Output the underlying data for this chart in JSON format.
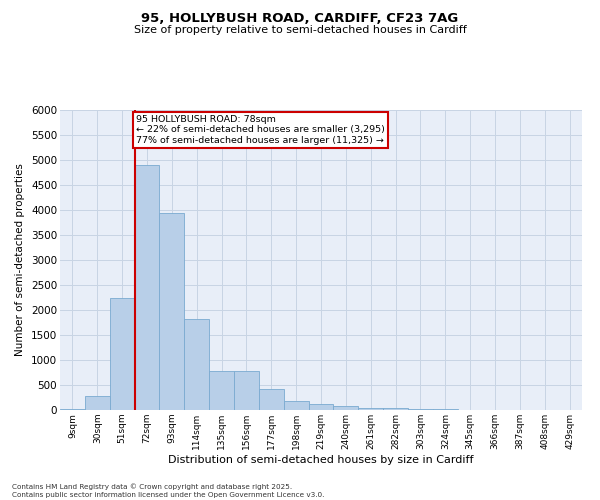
{
  "title_line1": "95, HOLLYBUSH ROAD, CARDIFF, CF23 7AG",
  "title_line2": "Size of property relative to semi-detached houses in Cardiff",
  "xlabel": "Distribution of semi-detached houses by size in Cardiff",
  "ylabel": "Number of semi-detached properties",
  "categories": [
    "9sqm",
    "30sqm",
    "51sqm",
    "72sqm",
    "93sqm",
    "114sqm",
    "135sqm",
    "156sqm",
    "177sqm",
    "198sqm",
    "219sqm",
    "240sqm",
    "261sqm",
    "282sqm",
    "303sqm",
    "324sqm",
    "345sqm",
    "366sqm",
    "387sqm",
    "408sqm",
    "429sqm"
  ],
  "values": [
    25,
    280,
    2250,
    4900,
    3950,
    1820,
    780,
    780,
    430,
    190,
    125,
    85,
    50,
    35,
    22,
    12,
    8,
    4,
    2,
    1,
    1
  ],
  "bar_color": "#b8cfe8",
  "bar_edge_color": "#7aaad0",
  "property_bin_index": 3,
  "vertical_line_color": "#cc0000",
  "annotation_text": "95 HOLLYBUSH ROAD: 78sqm\n← 22% of semi-detached houses are smaller (3,295)\n77% of semi-detached houses are larger (11,325) →",
  "annotation_box_color": "#ffffff",
  "annotation_box_edge": "#cc0000",
  "ylim": [
    0,
    6000
  ],
  "yticks": [
    0,
    500,
    1000,
    1500,
    2000,
    2500,
    3000,
    3500,
    4000,
    4500,
    5000,
    5500,
    6000
  ],
  "grid_color": "#c8d4e4",
  "background_color": "#e8eef8",
  "footer_line1": "Contains HM Land Registry data © Crown copyright and database right 2025.",
  "footer_line2": "Contains public sector information licensed under the Open Government Licence v3.0."
}
